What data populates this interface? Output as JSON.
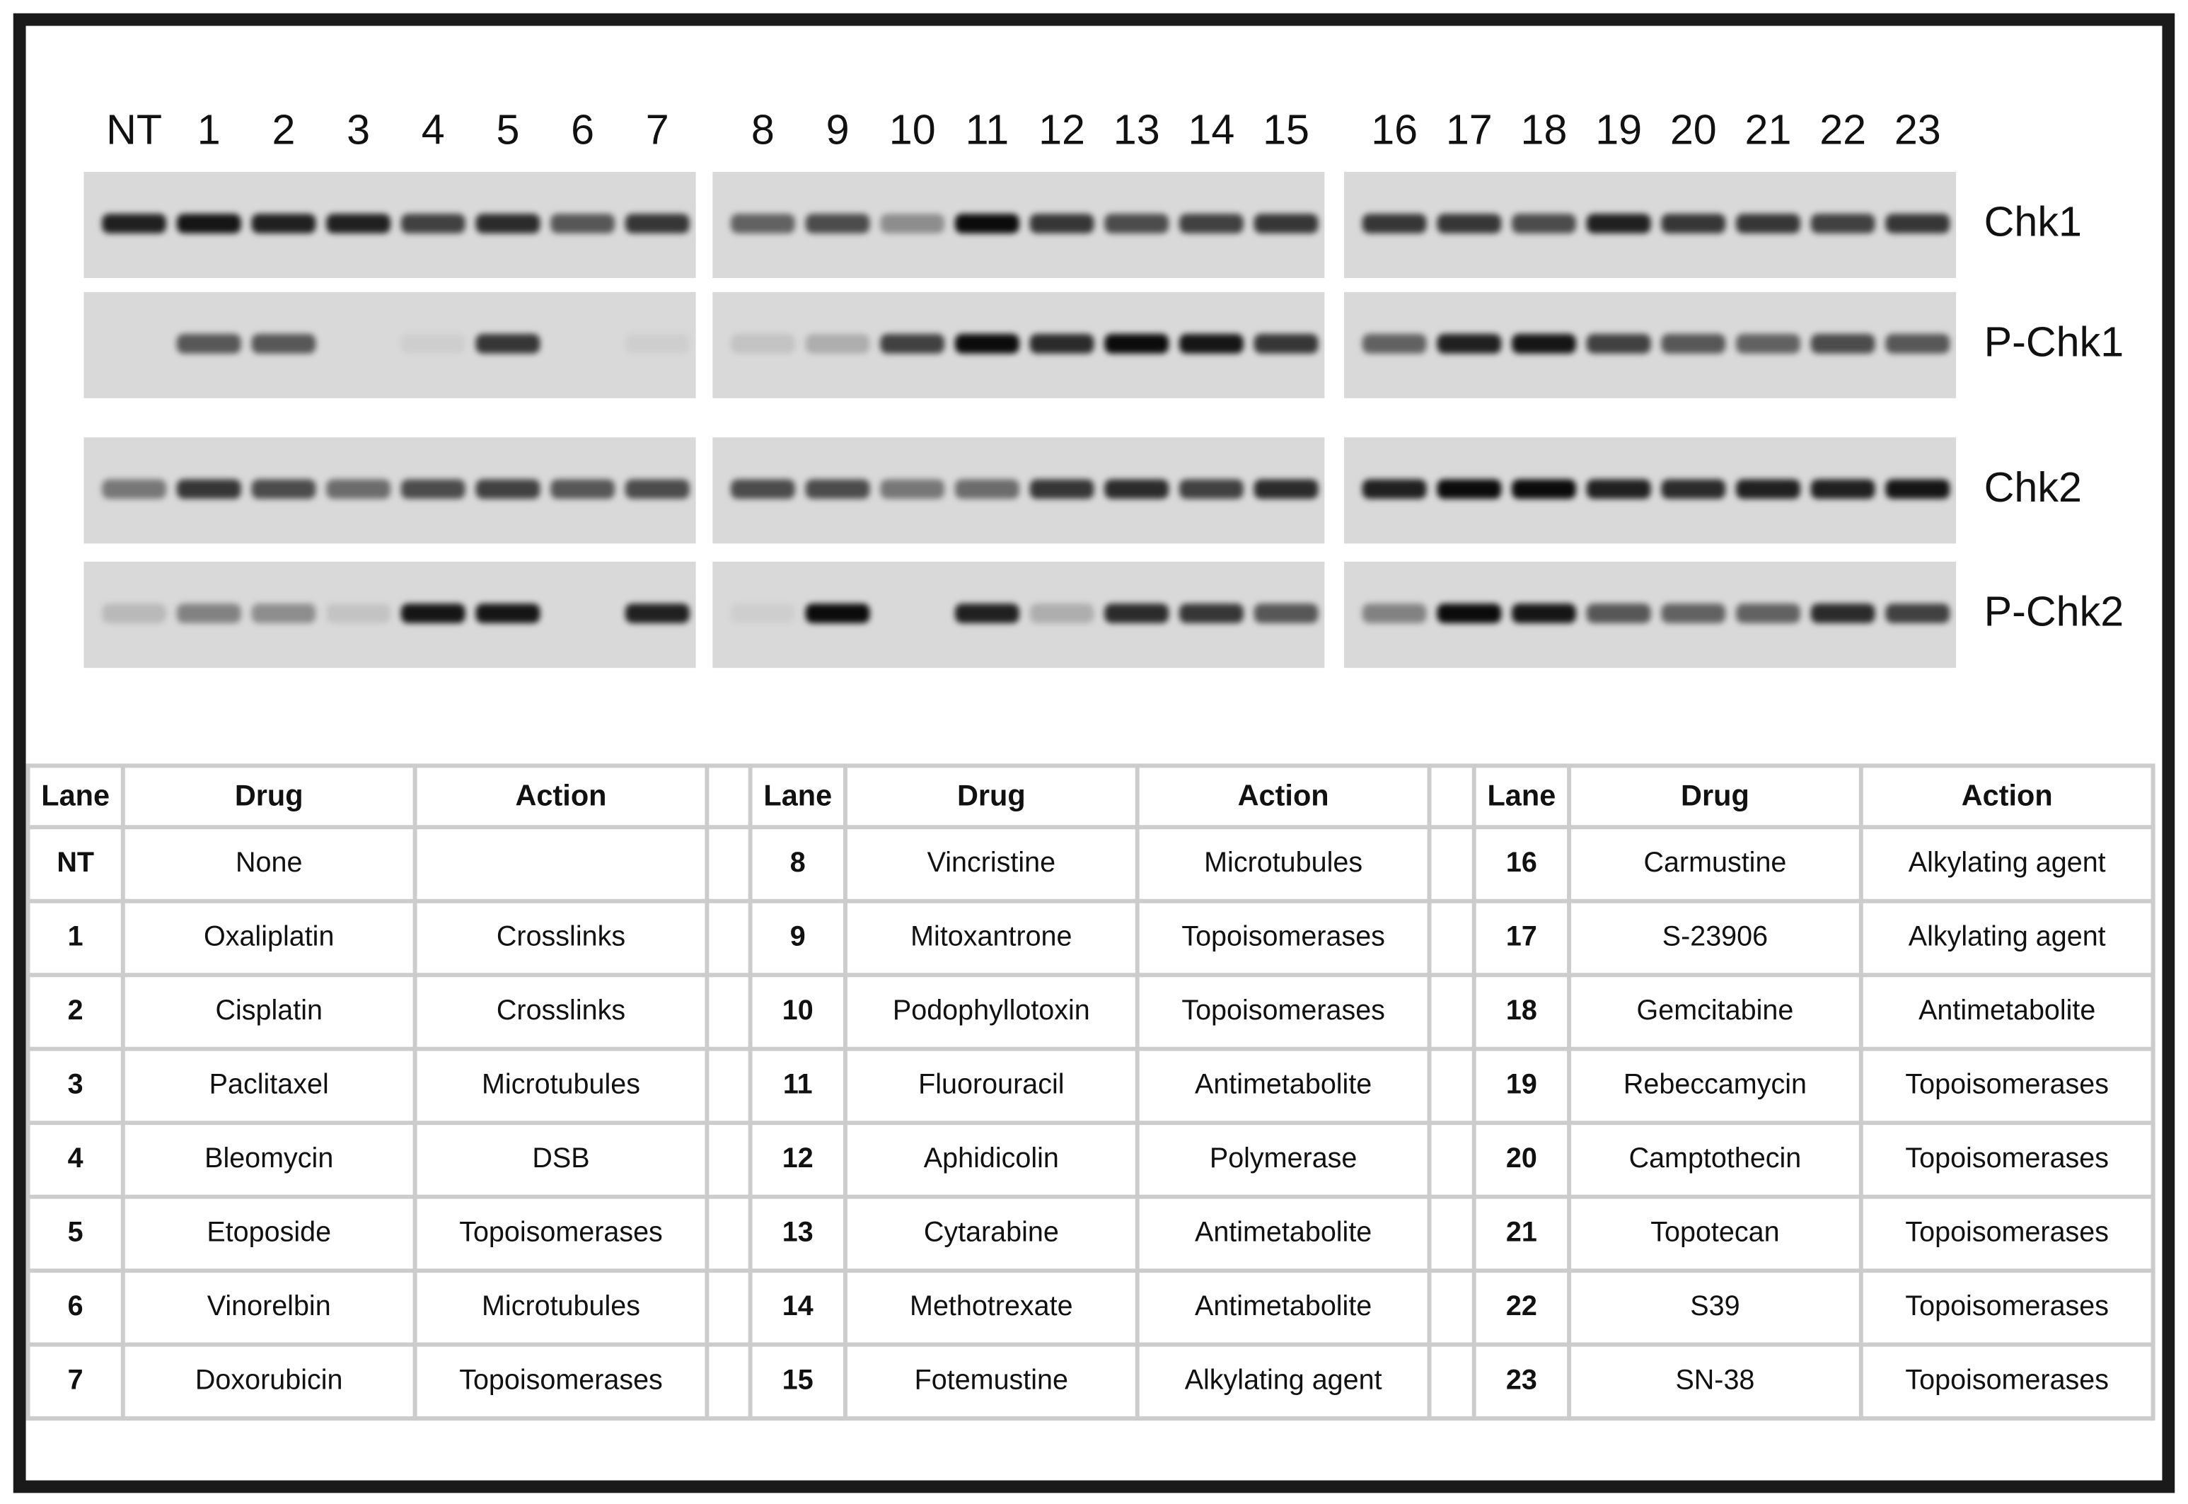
{
  "lanes": [
    "NT",
    "1",
    "2",
    "3",
    "4",
    "5",
    "6",
    "7",
    "8",
    "9",
    "10",
    "11",
    "12",
    "13",
    "14",
    "15",
    "16",
    "17",
    "18",
    "19",
    "20",
    "21",
    "22",
    "23"
  ],
  "blots": [
    {
      "label": "Chk1",
      "intensities": [
        0.85,
        0.9,
        0.85,
        0.85,
        0.7,
        0.8,
        0.6,
        0.75,
        0.55,
        0.65,
        0.35,
        0.95,
        0.75,
        0.65,
        0.7,
        0.75,
        0.75,
        0.75,
        0.65,
        0.85,
        0.75,
        0.75,
        0.7,
        0.75
      ]
    },
    {
      "label": "P-Chk1",
      "intensities": [
        0,
        0.6,
        0.6,
        0,
        0.05,
        0.75,
        0,
        0.05,
        0.1,
        0.2,
        0.7,
        0.95,
        0.8,
        0.95,
        0.9,
        0.75,
        0.55,
        0.85,
        0.9,
        0.7,
        0.6,
        0.55,
        0.65,
        0.6
      ]
    },
    {
      "label": "Chk2",
      "intensities": [
        0.45,
        0.75,
        0.65,
        0.5,
        0.65,
        0.7,
        0.6,
        0.65,
        0.65,
        0.65,
        0.45,
        0.5,
        0.75,
        0.8,
        0.7,
        0.8,
        0.85,
        0.95,
        0.95,
        0.85,
        0.8,
        0.85,
        0.85,
        0.9
      ]
    },
    {
      "label": "P-Chk2",
      "intensities": [
        0.15,
        0.4,
        0.35,
        0.1,
        0.9,
        0.9,
        0,
        0.85,
        0.05,
        0.95,
        0,
        0.85,
        0.2,
        0.8,
        0.75,
        0.6,
        0.4,
        0.95,
        0.9,
        0.6,
        0.55,
        0.55,
        0.8,
        0.7
      ]
    }
  ],
  "table": {
    "blocks": [
      {
        "columns": [
          "Lane",
          "Drug",
          "Action"
        ],
        "rows": [
          [
            "NT",
            "None",
            null
          ],
          [
            "1",
            "Oxaliplatin",
            "Crosslinks"
          ],
          [
            "2",
            "Cisplatin",
            "Crosslinks"
          ],
          [
            "3",
            "Paclitaxel",
            "Microtubules"
          ],
          [
            "4",
            "Bleomycin",
            "DSB"
          ],
          [
            "5",
            "Etoposide",
            "Topoisomerases"
          ],
          [
            "6",
            "Vinorelbin",
            "Microtubules"
          ],
          [
            "7",
            "Doxorubicin",
            "Topoisomerases"
          ]
        ]
      },
      {
        "columns": [
          "Lane",
          "Drug",
          "Action"
        ],
        "rows": [
          [
            "8",
            "Vincristine",
            "Microtubules"
          ],
          [
            "9",
            "Mitoxantrone",
            "Topoisomerases"
          ],
          [
            "10",
            "Podophyllotoxin",
            "Topoisomerases"
          ],
          [
            "11",
            "Fluorouracil",
            "Antimetabolite"
          ],
          [
            "12",
            "Aphidicolin",
            "Polymerase"
          ],
          [
            "13",
            "Cytarabine",
            "Antimetabolite"
          ],
          [
            "14",
            "Methotrexate",
            "Antimetabolite"
          ],
          [
            "15",
            "Fotemustine",
            "Alkylating agent"
          ]
        ]
      },
      {
        "columns": [
          "Lane",
          "Drug",
          "Action"
        ],
        "rows": [
          [
            "16",
            "Carmustine",
            "Alkylating agent"
          ],
          [
            "17",
            "S-23906",
            "Alkylating agent"
          ],
          [
            "18",
            "Gemcitabine",
            "Antimetabolite"
          ],
          [
            "19",
            "Rebeccamycin",
            "Topoisomerases"
          ],
          [
            "20",
            "Camptothecin",
            "Topoisomerases"
          ],
          [
            "21",
            "Topotecan",
            "Topoisomerases"
          ],
          [
            "22",
            "S39",
            "Topoisomerases"
          ],
          [
            "23",
            "SN-38",
            "Topoisomerases"
          ]
        ]
      }
    ]
  }
}
